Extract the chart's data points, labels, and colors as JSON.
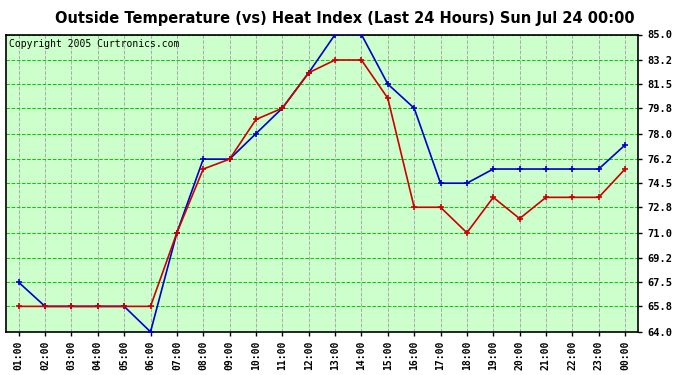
{
  "title": "Outside Temperature (vs) Heat Index (Last 24 Hours) Sun Jul 24 00:00",
  "copyright": "Copyright 2005 Curtronics.com",
  "x_labels": [
    "01:00",
    "02:00",
    "03:00",
    "04:00",
    "05:00",
    "06:00",
    "07:00",
    "08:00",
    "09:00",
    "10:00",
    "11:00",
    "12:00",
    "13:00",
    "14:00",
    "15:00",
    "16:00",
    "17:00",
    "18:00",
    "19:00",
    "20:00",
    "21:00",
    "22:00",
    "23:00",
    "00:00"
  ],
  "blue_data": [
    67.5,
    65.8,
    65.8,
    65.8,
    65.8,
    64.0,
    71.0,
    76.2,
    76.2,
    78.0,
    79.8,
    82.3,
    85.0,
    85.0,
    81.5,
    79.8,
    74.5,
    74.5,
    75.5,
    75.5,
    75.5,
    75.5,
    75.5,
    77.2
  ],
  "red_data": [
    65.8,
    65.8,
    65.8,
    65.8,
    65.8,
    65.8,
    71.0,
    75.5,
    76.2,
    79.0,
    79.8,
    82.3,
    83.2,
    83.2,
    80.5,
    72.8,
    72.8,
    71.0,
    73.5,
    72.0,
    73.5,
    73.5,
    73.5,
    75.5
  ],
  "ylim": [
    64.0,
    85.0
  ],
  "yticks": [
    64.0,
    65.8,
    67.5,
    69.2,
    71.0,
    72.8,
    74.5,
    76.2,
    78.0,
    79.8,
    81.5,
    83.2,
    85.0
  ],
  "blue_color": "#0000cc",
  "red_color": "#cc0000",
  "bg_color": "#ffffff",
  "plot_bg_color": "#ccffcc",
  "grid_color": "#00cc00",
  "grid_minor_color": "#00cc00",
  "title_fontsize": 10.5,
  "copyright_fontsize": 7.0,
  "tick_fontsize": 7.5,
  "xtick_fontsize": 7.0
}
